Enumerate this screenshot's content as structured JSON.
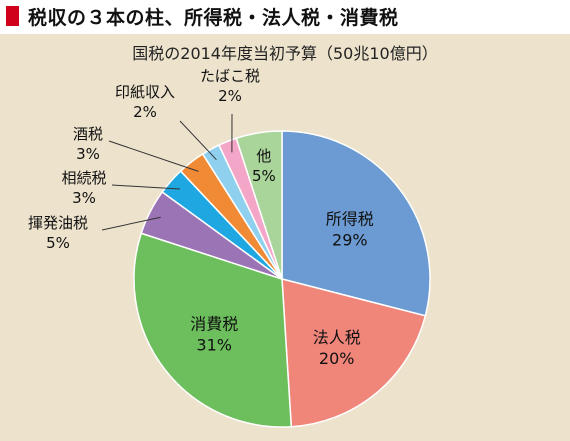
{
  "header": {
    "title": "税収の３本の柱、所得税・法人税・消費税",
    "marker_color": "#d0021b"
  },
  "chart_data": {
    "type": "pie",
    "title": "国税の2014年度当初予算（50兆10億円）",
    "unit": "%",
    "start": "12 o'clock",
    "direction": "clockwise",
    "slices": [
      {
        "label": "所得税",
        "value": 29,
        "value_text": "29%",
        "color": "#6b9bd2",
        "label_position": "inside"
      },
      {
        "label": "法人税",
        "value": 20,
        "value_text": "20%",
        "color": "#f0857a",
        "label_position": "inside"
      },
      {
        "label": "消費税",
        "value": 31,
        "value_text": "31%",
        "color": "#6cbf5c",
        "label_position": "inside"
      },
      {
        "label": "揮発油税",
        "value": 5,
        "value_text": "5%",
        "color": "#9b74b5",
        "label_position": "outside"
      },
      {
        "label": "相続税",
        "value": 3,
        "value_text": "3%",
        "color": "#1ea7e0",
        "label_position": "outside"
      },
      {
        "label": "酒税",
        "value": 3,
        "value_text": "3%",
        "color": "#f08a34",
        "label_position": "outside"
      },
      {
        "label": "印紙収入",
        "value": 2,
        "value_text": "2%",
        "color": "#8fd0ef",
        "label_position": "outside"
      },
      {
        "label": "たばこ税",
        "value": 2,
        "value_text": "2%",
        "color": "#f4a6c8",
        "label_position": "outside"
      },
      {
        "label": "他",
        "value": 5,
        "value_text": "5%",
        "color": "#a9d49a",
        "label_position": "inside"
      }
    ]
  }
}
